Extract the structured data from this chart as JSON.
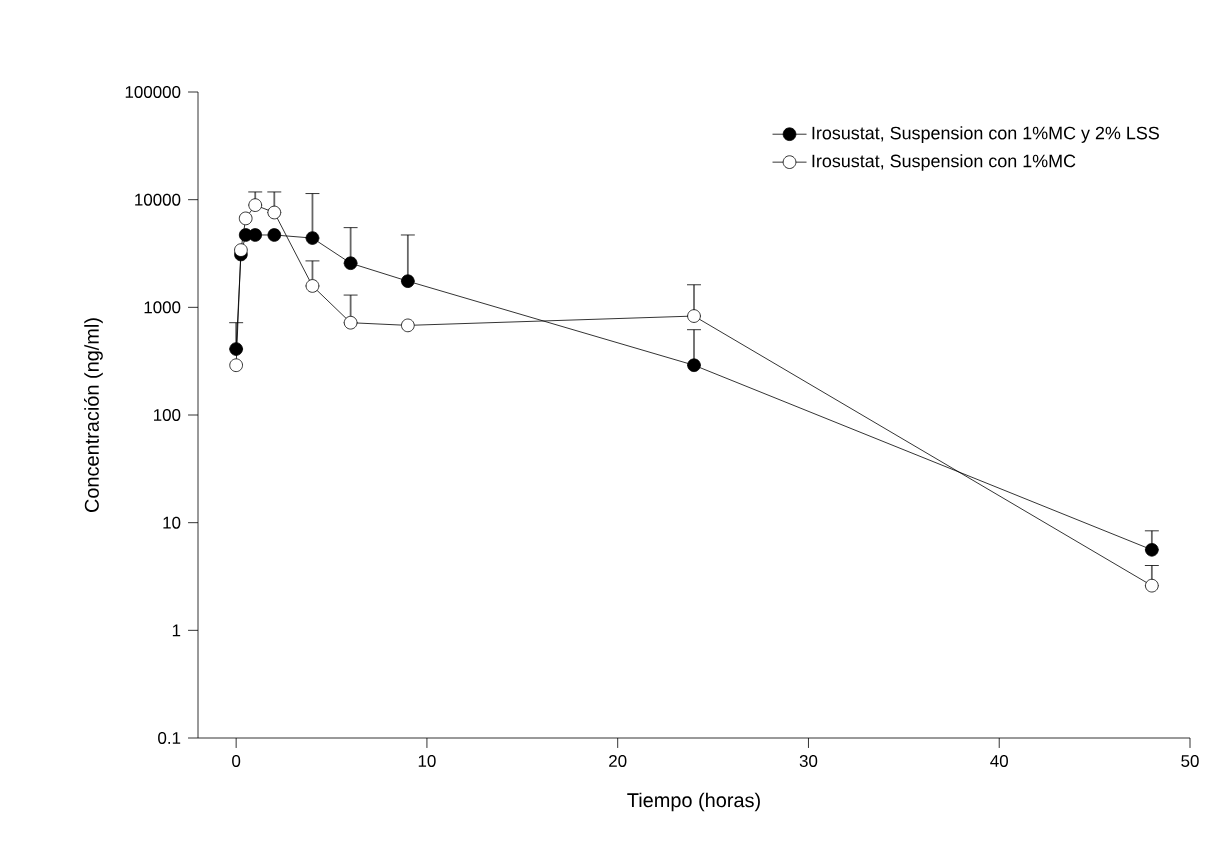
{
  "chart_data": {
    "type": "line",
    "xlabel": "Tiempo (horas)",
    "ylabel": "Concentración (ng/ml)",
    "log": "y",
    "xlim": [
      -2,
      50
    ],
    "xticks": [
      0,
      10,
      20,
      30,
      40,
      50
    ],
    "ylim": [
      0.1,
      100000
    ],
    "yticks": [
      0.1,
      1,
      10,
      100,
      1000,
      10000,
      100000
    ],
    "legend": "top right",
    "marker": "circle",
    "line_style": "solid",
    "grid": false,
    "series": [
      {
        "name": "Irosustat, Suspension con 1%MC y 2% LSS",
        "color": "#000000",
        "x": [
          0,
          0.25,
          0.5,
          1,
          2,
          4,
          6,
          9,
          24,
          48
        ],
        "values": [
          410,
          3100,
          4700,
          4700,
          4700,
          4400,
          2570,
          1750,
          290,
          5.6
        ],
        "errors": [
          [
            410,
            720
          ],
          null,
          null,
          null,
          null,
          [
            4400,
            11400
          ],
          [
            2570,
            5500
          ],
          [
            1750,
            4700
          ],
          [
            290,
            620
          ],
          [
            5.6,
            8.4
          ]
        ]
      },
      {
        "name": "Irosustat, Suspension con 1%MC",
        "color": "#ffffff",
        "x": [
          0,
          0.25,
          0.5,
          1,
          2,
          4,
          6,
          9,
          24,
          48
        ],
        "values": [
          290,
          3400,
          6700,
          8900,
          7600,
          1580,
          720,
          680,
          830,
          2.6
        ],
        "errors": [
          null,
          null,
          null,
          [
            8900,
            11800
          ],
          [
            7600,
            11800
          ],
          [
            1580,
            2700
          ],
          [
            720,
            1300
          ],
          null,
          [
            830,
            1620
          ],
          [
            2.6,
            4.0
          ]
        ]
      }
    ]
  }
}
